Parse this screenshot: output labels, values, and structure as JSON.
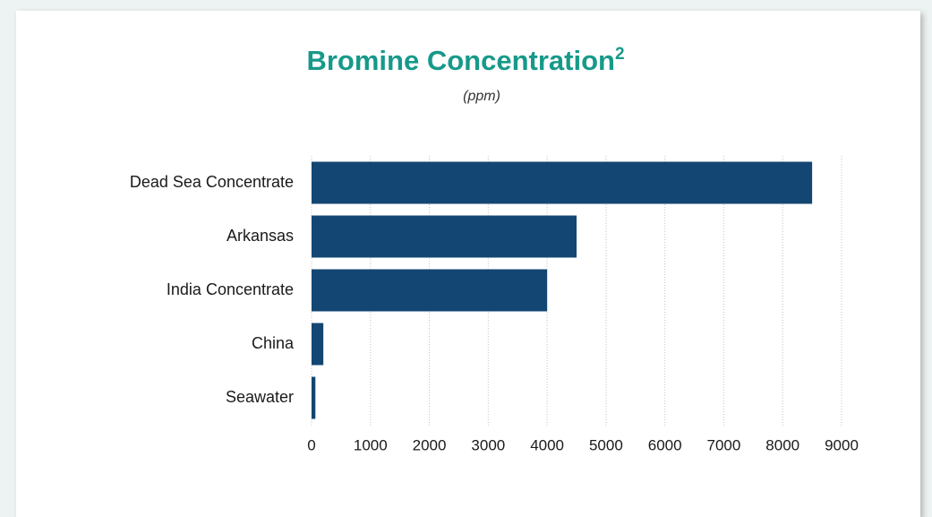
{
  "chart_data": {
    "type": "bar",
    "orientation": "horizontal",
    "title": "Bromine Concentration",
    "title_superscript": "2",
    "subtitle": "(ppm)",
    "categories": [
      "Dead Sea Concentrate",
      "Arkansas",
      "India Concentrate",
      "China",
      "Seawater"
    ],
    "values": [
      8500,
      4500,
      4000,
      200,
      65
    ],
    "color": "#134672",
    "xlim": [
      0,
      9000
    ],
    "xticks": [
      0,
      1000,
      2000,
      3000,
      4000,
      5000,
      6000,
      7000,
      8000,
      9000
    ],
    "grid": true
  }
}
